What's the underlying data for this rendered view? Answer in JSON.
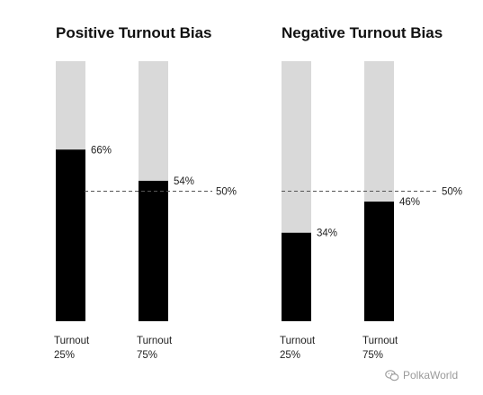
{
  "chart_data": [
    {
      "type": "bar",
      "title": "Positive Turnout Bias",
      "categories": [
        "Turnout\n25%",
        "Turnout\n75%"
      ],
      "values": [
        66,
        54
      ],
      "value_labels": [
        "66%",
        "54%"
      ],
      "ylim": [
        0,
        100
      ],
      "reference_line": {
        "value": 50,
        "label": "50%",
        "style": "dashed"
      },
      "colors": {
        "fill": "#000000",
        "track": "#d9d9d9"
      },
      "grid": false,
      "legend": "none"
    },
    {
      "type": "bar",
      "title": "Negative Turnout Bias",
      "categories": [
        "Turnout\n25%",
        "Turnout\n75%"
      ],
      "values": [
        34,
        46
      ],
      "value_labels": [
        "34%",
        "46%"
      ],
      "ylim": [
        0,
        100
      ],
      "reference_line": {
        "value": 50,
        "label": "50%",
        "style": "dashed"
      },
      "colors": {
        "fill": "#000000",
        "track": "#d9d9d9"
      },
      "grid": false,
      "legend": "none"
    }
  ],
  "watermark": {
    "text": "PolkaWorld",
    "icon": "wechat-icon"
  }
}
